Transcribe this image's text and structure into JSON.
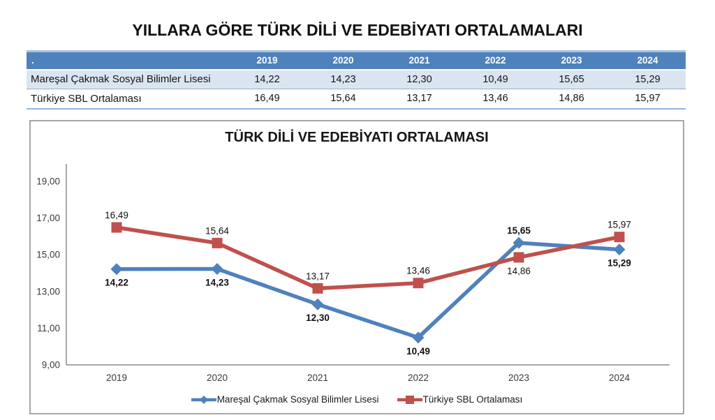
{
  "page_title": "YILLARA GÖRE TÜRK DİLİ VE EDEBİYATI ORTALAMALARI",
  "table": {
    "corner_label": ".",
    "years": [
      "2019",
      "2020",
      "2021",
      "2022",
      "2023",
      "2024"
    ],
    "rows": [
      {
        "label": "Mareşal Çakmak Sosyal Bilimler Lisesi",
        "values": [
          "14,22",
          "14,23",
          "12,30",
          "10,49",
          "15,65",
          "15,29"
        ]
      },
      {
        "label": "Türkiye SBL Ortalaması",
        "values": [
          "16,49",
          "15,64",
          "13,17",
          "13,46",
          "14,86",
          "15,97"
        ]
      }
    ],
    "header_bg": "#4f81bd",
    "row_alt_bg": "#dbe5f1"
  },
  "chart_data": {
    "type": "line",
    "title": "TÜRK DİLİ VE EDEBİYATI ORTALAMASI",
    "categories": [
      "2019",
      "2020",
      "2021",
      "2022",
      "2023",
      "2024"
    ],
    "series": [
      {
        "name": "Mareşal Çakmak Sosyal Bilimler Lisesi",
        "values": [
          14.22,
          14.23,
          12.3,
          10.49,
          15.65,
          15.29
        ],
        "labels": [
          "14,22",
          "14,23",
          "12,30",
          "10,49",
          "15,65",
          "15,29"
        ],
        "color": "#4f81bd",
        "marker": "diamond",
        "label_bold": true,
        "label_side": [
          "below",
          "below",
          "below",
          "below",
          "above",
          "below"
        ]
      },
      {
        "name": "Türkiye SBL Ortalaması",
        "values": [
          16.49,
          15.64,
          13.17,
          13.46,
          14.86,
          15.97
        ],
        "labels": [
          "16,49",
          "15,64",
          "13,17",
          "13,46",
          "14,86",
          "15,97"
        ],
        "color": "#c0504d",
        "marker": "square",
        "label_bold": false,
        "label_side": [
          "above",
          "above",
          "above",
          "above",
          "below",
          "above"
        ]
      }
    ],
    "y_ticks": [
      "19,00",
      "17,00",
      "15,00",
      "13,00",
      "11,00",
      "9,00"
    ],
    "y_min": 9,
    "y_max": 19,
    "y_step": 2,
    "grid": false,
    "legend_position": "bottom",
    "axis_color": "#8c8c8c"
  }
}
